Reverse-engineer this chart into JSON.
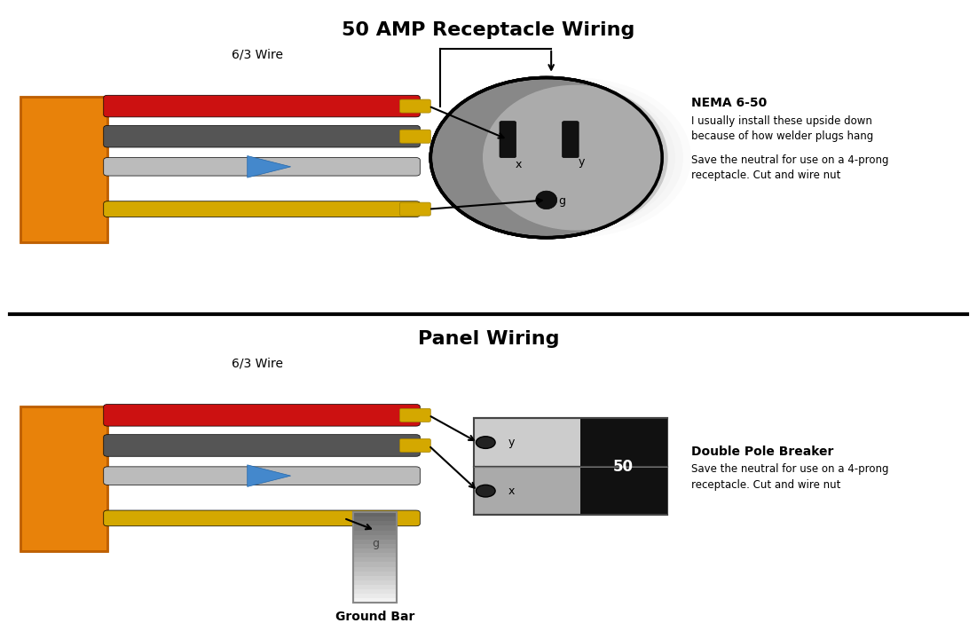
{
  "title_top": "50 AMP Receptacle Wiring",
  "title_bottom": "Panel Wiring",
  "wire_label": "6/3 Wire",
  "nema_label": "NEMA 6-50",
  "nema_text1": "I usually install these upside down",
  "nema_text2": "because of how welder plugs hang",
  "nema_text3": "Save the neutral for use on a 4-prong",
  "nema_text4": "receptacle. Cut and wire nut",
  "breaker_label": "Double Pole Breaker",
  "breaker_text1": "Save the neutral for use on a 4-prong",
  "breaker_text2": "receptacle. Cut and wire nut",
  "ground_bar_label": "Ground Bar",
  "bg_color": "#ffffff",
  "orange_color": "#e8820a",
  "red_color": "#cc1111",
  "dark_gray_color": "#555555",
  "light_gray_color": "#cccccc",
  "yellow_color": "#d4a800",
  "blue_color": "#4488cc",
  "black_color": "#111111",
  "outlet_gray": "#999999",
  "outlet_dark": "#444444",
  "breaker_light": "#dddddd",
  "breaker_dark": "#000000"
}
